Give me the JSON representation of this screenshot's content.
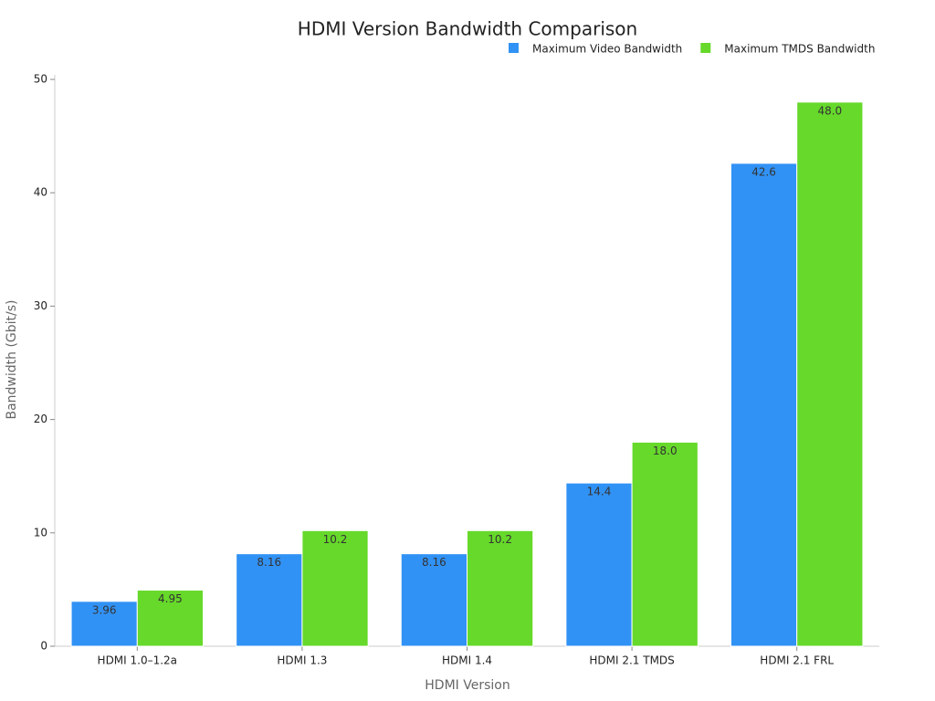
{
  "chart_data": {
    "type": "bar",
    "title": "HDMI Version Bandwidth Comparison",
    "xlabel": "HDMI Version",
    "ylabel": "Bandwidth (Gbit/s)",
    "categories": [
      "HDMI 1.0–1.2a",
      "HDMI 1.3",
      "HDMI 1.4",
      "HDMI 2.1 TMDS",
      "HDMI 2.1 FRL"
    ],
    "series": [
      {
        "name": "Maximum Video Bandwidth",
        "color": "#3192f5",
        "values": [
          3.96,
          8.16,
          8.16,
          14.4,
          42.6
        ]
      },
      {
        "name": "Maximum TMDS Bandwidth",
        "color": "#66d92a",
        "values": [
          4.95,
          10.2,
          10.2,
          18.0,
          48.0
        ],
        "value_labels": [
          "4.95",
          "10.2",
          "10.2",
          "18.0",
          "48.0"
        ]
      }
    ],
    "ylim": [
      0,
      50
    ],
    "yticks": [
      0,
      10,
      20,
      30,
      40,
      50
    ],
    "grid": false,
    "legend": "top-right"
  }
}
